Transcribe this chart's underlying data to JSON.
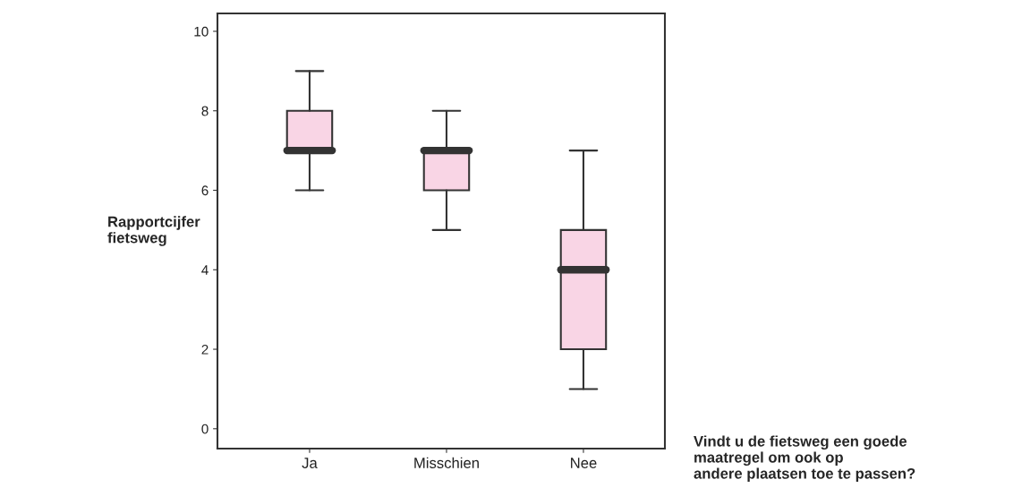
{
  "chart_data": {
    "type": "box",
    "categories": [
      "Ja",
      "Misschien",
      "Nee"
    ],
    "boxes": [
      {
        "low": 6,
        "q1": 7,
        "median": 7,
        "q3": 8,
        "high": 9
      },
      {
        "low": 5,
        "q1": 6,
        "median": 7,
        "q3": 7,
        "high": 8
      },
      {
        "low": 1,
        "q1": 2,
        "median": 4,
        "q3": 5,
        "high": 7
      }
    ],
    "color": "#f9d5e5",
    "ylabel": "Rapportcijfer\nfietsweg",
    "xlabel": "Vindt u de fietsweg een goede\nmaatregel om ook op\nandere plaatsen toe te passen?",
    "ylim": [
      -0.5,
      10.45
    ],
    "yticks": [
      0,
      2,
      4,
      6,
      8,
      10
    ],
    "grid": false,
    "legend": false
  }
}
